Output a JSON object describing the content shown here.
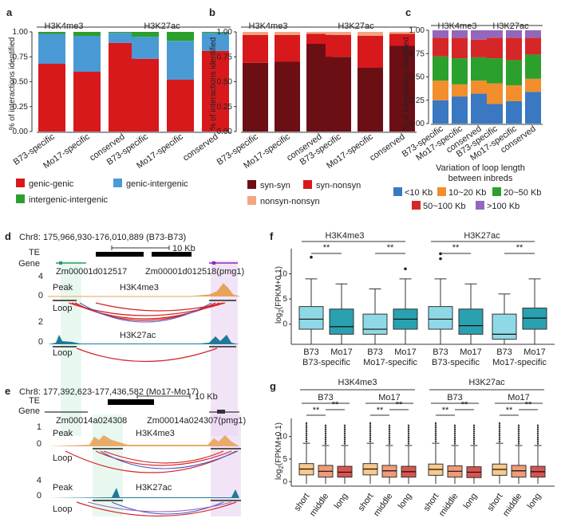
{
  "panels": {
    "a": "a",
    "b": "b",
    "c": "c",
    "d": "d",
    "e": "e",
    "f": "f",
    "g": "g"
  },
  "common": {
    "ylabel_pct": "% of interactions identified",
    "pct_ticks": [
      "0.00",
      "0.25",
      "0.50",
      "0.75",
      "1.00"
    ],
    "pct_ticks_c": [
      "0.00",
      "0.25",
      "0.50",
      "0.75",
      "1.00"
    ],
    "mark_groups": [
      "H3K4me3",
      "H3K27ac"
    ],
    "xcats": [
      "B73-specific",
      "Mo17-specific",
      "conserved"
    ],
    "ylabel_expr": "log2(FPKM+0.1)",
    "ylabel_expr_main": "log",
    "ylabel_expr_sub": "2",
    "ylabel_expr_rest": "(FPKM+0.1)",
    "sig": "**"
  },
  "colors": {
    "genic_genic": "#d7191c",
    "genic_intergenic": "#4a9ad6",
    "intergenic_intergenic": "#2ca02c",
    "syn_syn": "#6b0f14",
    "syn_nonsyn": "#d7191c",
    "nonsyn_nonsyn": "#f4a582",
    "lt10": "#3a78c2",
    "10_20": "#f28e2b",
    "20_50": "#2ca02c",
    "50_100": "#d62728",
    "gt100": "#9467bd",
    "teal_light": "#8fd9e6",
    "teal_dark": "#2aa1b0",
    "track_orange": "#e8a35a",
    "track_teal": "#1f7a9a",
    "box_short": "#f7c98b",
    "box_middle": "#f09a78",
    "box_long": "#d9534f"
  },
  "legend_a": [
    "genic-genic",
    "genic-intergenic",
    "intergenic-intergenic"
  ],
  "legend_b": [
    "syn-syn",
    "syn-nonsyn",
    "nonsyn-nonsyn"
  ],
  "legend_c": {
    "title_line1": "Variation of loop length",
    "title_line2": "between inbreds",
    "items": [
      "<10 Kb",
      "10~20 Kb",
      "20~50 Kb",
      "50~100 Kb",
      ">100 Kb"
    ]
  },
  "chart_data": [
    {
      "type": "bar",
      "panel": "a",
      "title": "",
      "stacked": true,
      "ylabel": "% of interactions identified",
      "ylim": [
        0,
        1
      ],
      "groups": [
        "H3K4me3",
        "H3K27ac"
      ],
      "categories": [
        "B73-specific",
        "Mo17-specific",
        "conserved"
      ],
      "series": [
        {
          "name": "genic-genic",
          "values": [
            [
              0.68,
              0.6,
              0.89
            ],
            [
              0.73,
              0.52,
              0.81
            ]
          ]
        },
        {
          "name": "genic-intergenic",
          "values": [
            [
              0.3,
              0.36,
              0.1
            ],
            [
              0.22,
              0.39,
              0.18
            ]
          ]
        },
        {
          "name": "intergenic-intergenic",
          "values": [
            [
              0.02,
              0.04,
              0.01
            ],
            [
              0.05,
              0.09,
              0.01
            ]
          ]
        }
      ]
    },
    {
      "type": "bar",
      "panel": "b",
      "stacked": true,
      "ylabel": "% of interactions identified",
      "ylim": [
        0,
        1
      ],
      "groups": [
        "H3K4me3",
        "H3K27ac"
      ],
      "categories": [
        "B73-specific",
        "Mo17-specific",
        "conserved"
      ],
      "series": [
        {
          "name": "syn-syn",
          "values": [
            [
              0.69,
              0.7,
              0.88
            ],
            [
              0.75,
              0.64,
              0.86
            ]
          ]
        },
        {
          "name": "syn-nonsyn",
          "values": [
            [
              0.28,
              0.27,
              0.1
            ],
            [
              0.22,
              0.32,
              0.12
            ]
          ]
        },
        {
          "name": "nonsyn-nonsyn",
          "values": [
            [
              0.03,
              0.03,
              0.02
            ],
            [
              0.03,
              0.04,
              0.02
            ]
          ]
        }
      ]
    },
    {
      "type": "bar",
      "panel": "c",
      "stacked": true,
      "ylabel": "% of interactions identified",
      "ylim": [
        0,
        1
      ],
      "groups": [
        "H3K4me3",
        "H3K27ac"
      ],
      "categories": [
        "B73-specific",
        "Mo17-specific",
        "conserved"
      ],
      "series": [
        {
          "name": "<10 Kb",
          "values": [
            [
              0.25,
              0.29,
              0.32
            ],
            [
              0.21,
              0.24,
              0.34
            ]
          ]
        },
        {
          "name": "10~20 Kb",
          "values": [
            [
              0.21,
              0.13,
              0.14
            ],
            [
              0.22,
              0.17,
              0.14
            ]
          ]
        },
        {
          "name": "20~50 Kb",
          "values": [
            [
              0.26,
              0.28,
              0.25
            ],
            [
              0.27,
              0.27,
              0.26
            ]
          ]
        },
        {
          "name": "50~100 Kb",
          "values": [
            [
              0.2,
              0.22,
              0.19
            ],
            [
              0.22,
              0.24,
              0.18
            ]
          ]
        },
        {
          "name": ">100 Kb",
          "values": [
            [
              0.08,
              0.08,
              0.1
            ],
            [
              0.08,
              0.08,
              0.08
            ]
          ]
        }
      ]
    },
    {
      "type": "box",
      "panel": "f",
      "ylabel": "log2(FPKM+0.1)",
      "ylim": [
        -4,
        15
      ],
      "yticks": [
        0,
        5,
        10
      ],
      "groups": [
        {
          "mark": "H3K4me3",
          "set": "B73-specific"
        },
        {
          "mark": "H3K4me3",
          "set": "Mo17-specific"
        },
        {
          "mark": "H3K27ac",
          "set": "B73-specific"
        },
        {
          "mark": "H3K27ac",
          "set": "Mo17-specific"
        }
      ],
      "categories": [
        "B73",
        "Mo17"
      ],
      "boxes": [
        [
          {
            "q1": -1,
            "med": 1,
            "q3": 3.5,
            "wl": -4,
            "wh": 9,
            "out": [
              13.3
            ]
          },
          {
            "q1": -2,
            "med": -0.5,
            "q3": 3,
            "wl": -4,
            "wh": 8
          }
        ],
        [
          {
            "q1": -2,
            "med": -1,
            "q3": 2,
            "wl": -4,
            "wh": 7
          },
          {
            "q1": -1,
            "med": 1,
            "q3": 3,
            "wl": -4,
            "wh": 9,
            "out": [
              11
            ]
          }
        ],
        [
          {
            "q1": -1,
            "med": 1,
            "q3": 3.5,
            "wl": -4,
            "wh": 9,
            "out": [
              14,
              13
            ]
          },
          {
            "q1": -2,
            "med": -0.3,
            "q3": 3,
            "wl": -4,
            "wh": 8
          }
        ],
        [
          {
            "q1": -3,
            "med": -2,
            "q3": 2,
            "wl": -4,
            "wh": 6
          },
          {
            "q1": -1,
            "med": 1.2,
            "q3": 3.2,
            "wl": -4,
            "wh": 9
          }
        ]
      ]
    },
    {
      "type": "box",
      "panel": "g",
      "ylabel": "log2(FPKM+0.1)",
      "ylim": [
        -1,
        14
      ],
      "yticks": [
        0,
        5,
        10
      ],
      "groups": [
        {
          "mark": "H3K4me3",
          "line": "B73"
        },
        {
          "mark": "H3K4me3",
          "line": "Mo17"
        },
        {
          "mark": "H3K27ac",
          "line": "B73"
        },
        {
          "mark": "H3K27ac",
          "line": "Mo17"
        }
      ],
      "categories": [
        "short",
        "middle",
        "long"
      ],
      "boxes": [
        [
          {
            "q1": 1.5,
            "med": 2.8,
            "q3": 4,
            "wl": -0.5,
            "wh": 8.5
          },
          {
            "q1": 1,
            "med": 2.3,
            "q3": 3.6,
            "wl": -0.5,
            "wh": 8
          },
          {
            "q1": 1,
            "med": 2.1,
            "q3": 3.4,
            "wl": -0.5,
            "wh": 8
          }
        ],
        [
          {
            "q1": 1.5,
            "med": 2.8,
            "q3": 4,
            "wl": -0.5,
            "wh": 8.5
          },
          {
            "q1": 1,
            "med": 2.4,
            "q3": 3.6,
            "wl": -0.5,
            "wh": 8
          },
          {
            "q1": 1,
            "med": 2.2,
            "q3": 3.4,
            "wl": -0.5,
            "wh": 8
          }
        ],
        [
          {
            "q1": 1.4,
            "med": 2.7,
            "q3": 3.9,
            "wl": -0.5,
            "wh": 8.5
          },
          {
            "q1": 1,
            "med": 2.3,
            "q3": 3.5,
            "wl": -0.5,
            "wh": 8
          },
          {
            "q1": 0.9,
            "med": 2.1,
            "q3": 3.3,
            "wl": -0.5,
            "wh": 8
          }
        ],
        [
          {
            "q1": 1.4,
            "med": 2.7,
            "q3": 3.9,
            "wl": -0.5,
            "wh": 8.5
          },
          {
            "q1": 1,
            "med": 2.4,
            "q3": 3.6,
            "wl": -0.5,
            "wh": 8
          },
          {
            "q1": 1,
            "med": 2.2,
            "q3": 3.4,
            "wl": -0.5,
            "wh": 8
          }
        ]
      ]
    }
  ],
  "panel_d": {
    "coord": "Chr8: 175,966,930-176,010,889 (B73-B73)",
    "scale": "10 Kb",
    "te": "TE",
    "gene": "Gene",
    "gene1": "Zm00001d012517",
    "gene2": "Zm00001d012518(pmg1)",
    "mark1": "H3K4me3",
    "mark2": "H3K27ac",
    "peak": "Peak",
    "loop": "Loop",
    "y1": [
      "4",
      "0"
    ],
    "y2": [
      "2",
      "0"
    ]
  },
  "panel_e": {
    "coord": "Chr8: 177,392,623-177,436,582 (Mo17-Mo17)",
    "scale": "10 Kb",
    "te": "TE",
    "gene": "Gene",
    "gene1": "Zm00014a024308",
    "gene2": "Zm00014a024307(pmg1)",
    "mark1": "H3K4me3",
    "mark2": "H3K27ac",
    "peak": "Peak",
    "loop": "Loop",
    "y1": [
      "1",
      "0"
    ],
    "y2": [
      "4",
      "0"
    ]
  },
  "panel_f_labels": {
    "B73": "B73",
    "Mo17": "Mo17",
    "B73spec": "B73-specific",
    "Mo17spec": "Mo17-specific"
  },
  "panel_g_labels": {
    "short": "short",
    "middle": "middle",
    "long": "long",
    "B73": "B73",
    "Mo17": "Mo17"
  }
}
